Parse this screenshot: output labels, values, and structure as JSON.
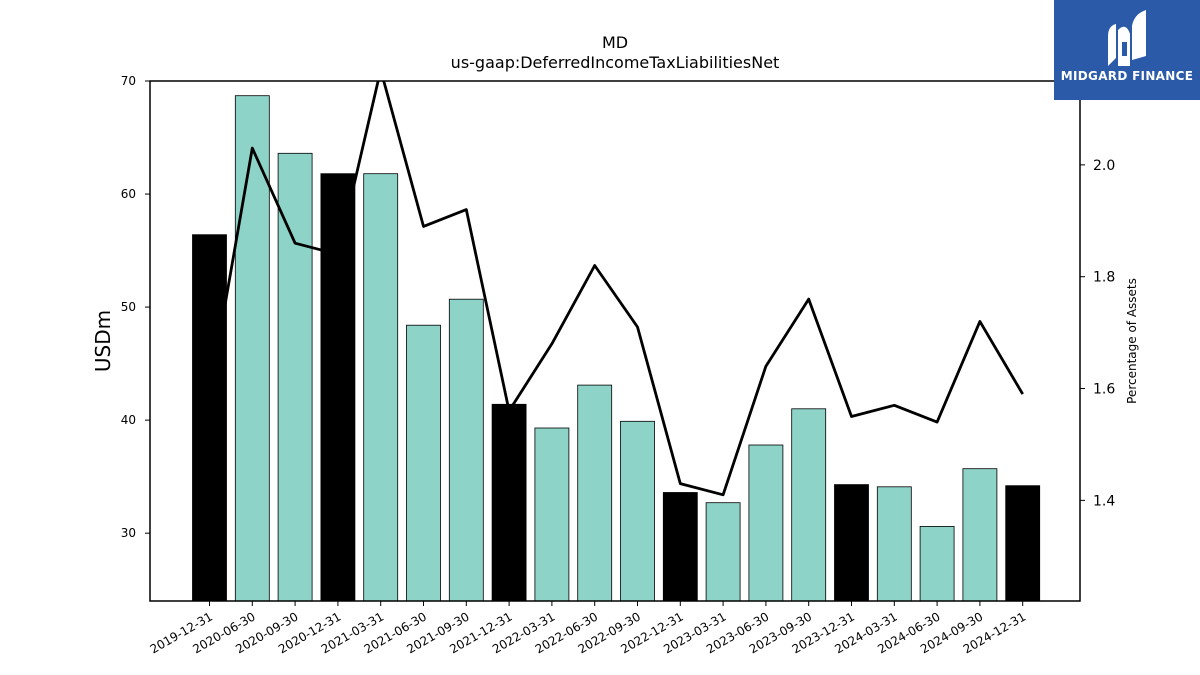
{
  "chart_data": {
    "type": "bar",
    "title": "MD",
    "subtitle": "us-gaap:DeferredIncomeTaxLiabilitiesNet",
    "ylabel": "USDm",
    "y2label": "Percentage of Assets",
    "ylim": [
      24,
      70
    ],
    "y2lim": [
      1.22,
      2.15
    ],
    "yticks": [
      30,
      40,
      50,
      60,
      70
    ],
    "y2ticks": [
      1.4,
      1.6,
      1.8,
      2.0
    ],
    "categories": [
      "2019-12-31",
      "2020-06-30",
      "2020-09-30",
      "2020-12-31",
      "2021-03-31",
      "2021-06-30",
      "2021-09-30",
      "2021-12-31",
      "2022-03-31",
      "2022-06-30",
      "2022-09-30",
      "2022-12-31",
      "2023-03-31",
      "2023-06-30",
      "2023-09-30",
      "2023-12-31",
      "2024-03-31",
      "2024-06-30",
      "2024-09-30",
      "2024-12-31"
    ],
    "values": [
      56.4,
      68.7,
      63.6,
      61.8,
      61.8,
      48.4,
      50.7,
      41.4,
      39.3,
      43.1,
      39.9,
      33.6,
      32.7,
      37.8,
      41.0,
      34.3,
      34.1,
      30.6,
      35.7,
      34.2
    ],
    "annual": [
      true,
      false,
      false,
      true,
      false,
      false,
      false,
      true,
      false,
      false,
      false,
      true,
      false,
      false,
      false,
      true,
      false,
      false,
      false,
      true
    ],
    "line_values": [
      1.59,
      2.03,
      1.86,
      1.84,
      2.17,
      1.89,
      1.92,
      1.56,
      1.68,
      1.82,
      1.71,
      1.43,
      1.41,
      1.64,
      1.76,
      1.55,
      1.57,
      1.54,
      1.72,
      1.59
    ],
    "colors": {
      "annual": "#000000",
      "quarterly": "#8dd3c7",
      "line": "#000000"
    }
  },
  "logo": {
    "text": "MIDGARD FINANCE",
    "background": "#2a5aa8"
  }
}
